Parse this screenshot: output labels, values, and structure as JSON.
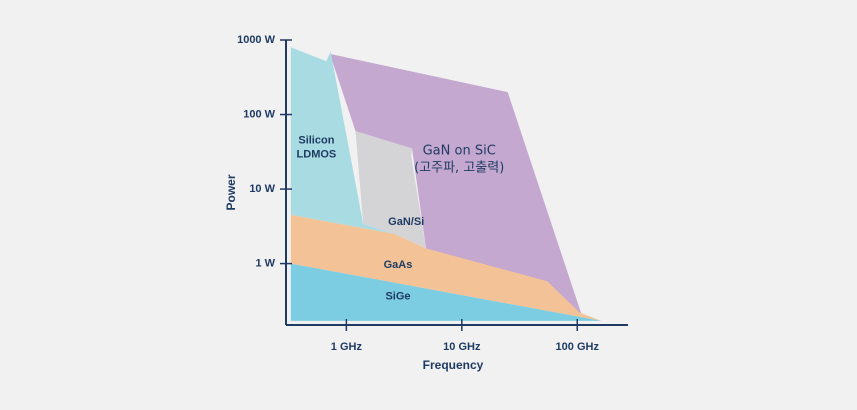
{
  "chart_data": {
    "type": "area",
    "title": "",
    "xlabel": "Frequency",
    "ylabel": "Power",
    "x_scale": "log",
    "y_scale": "log",
    "xlim_ghz": [
      0.3,
      200
    ],
    "ylim_w": [
      0.15,
      1000
    ],
    "x_ticks": [
      {
        "value": 1,
        "label": "1 GHz"
      },
      {
        "value": 10,
        "label": "10 GHz"
      },
      {
        "value": 100,
        "label": "100 GHz"
      }
    ],
    "y_ticks": [
      {
        "value": 1,
        "label": "1 W"
      },
      {
        "value": 10,
        "label": "10 W"
      },
      {
        "value": 100,
        "label": "100 W"
      },
      {
        "value": 1000,
        "label": "1000 W"
      }
    ],
    "grid": false,
    "legend": "none",
    "series": [
      {
        "name": "GaN on SiC",
        "label_lines": [
          "GaN on SiC",
          "(고주파, 고출력)"
        ],
        "color": "#c4a8d0",
        "label_at": [
          9.5,
          25
        ],
        "polygon": [
          [
            0.72,
            650
          ],
          [
            25,
            200
          ],
          [
            110,
            0.2
          ],
          [
            4.9,
            1.6
          ],
          [
            3.7,
            35
          ],
          [
            1.2,
            60
          ]
        ]
      },
      {
        "name": "GaN/Si",
        "label_lines": [
          "GaN/Si"
        ],
        "color": "#d4d4d6",
        "label_at": [
          3.3,
          3.6
        ],
        "polygon": [
          [
            1.2,
            60
          ],
          [
            3.7,
            35
          ],
          [
            3.65,
            27
          ],
          [
            4.9,
            1.6
          ],
          [
            2.6,
            2.5
          ],
          [
            1.4,
            3.4
          ]
        ]
      },
      {
        "name": "Silicon LDMOS",
        "label_lines": [
          "Silicon",
          "LDMOS"
        ],
        "color": "#a9dce2",
        "label_at": [
          0.55,
          36
        ],
        "polygon": [
          [
            0.33,
            800
          ],
          [
            0.67,
            520
          ],
          [
            0.73,
            700
          ],
          [
            1.4,
            3.4
          ],
          [
            2.6,
            2.5
          ],
          [
            0.33,
            4.5
          ]
        ]
      },
      {
        "name": "GaAs",
        "label_lines": [
          "GaAs"
        ],
        "color": "#f3c397",
        "label_at": [
          2.8,
          0.95
        ],
        "polygon": [
          [
            0.33,
            4.5
          ],
          [
            2.6,
            2.5
          ],
          [
            4.9,
            1.6
          ],
          [
            55,
            0.58
          ],
          [
            105,
            0.22
          ],
          [
            162,
            0.17
          ],
          [
            0.33,
            1.0
          ]
        ]
      },
      {
        "name": "SiGe",
        "label_lines": [
          "SiGe"
        ],
        "color": "#7ccde1",
        "label_at": [
          2.8,
          0.36
        ],
        "polygon": [
          [
            0.33,
            1.0
          ],
          [
            162,
            0.17
          ],
          [
            0.33,
            0.17
          ]
        ]
      }
    ]
  }
}
